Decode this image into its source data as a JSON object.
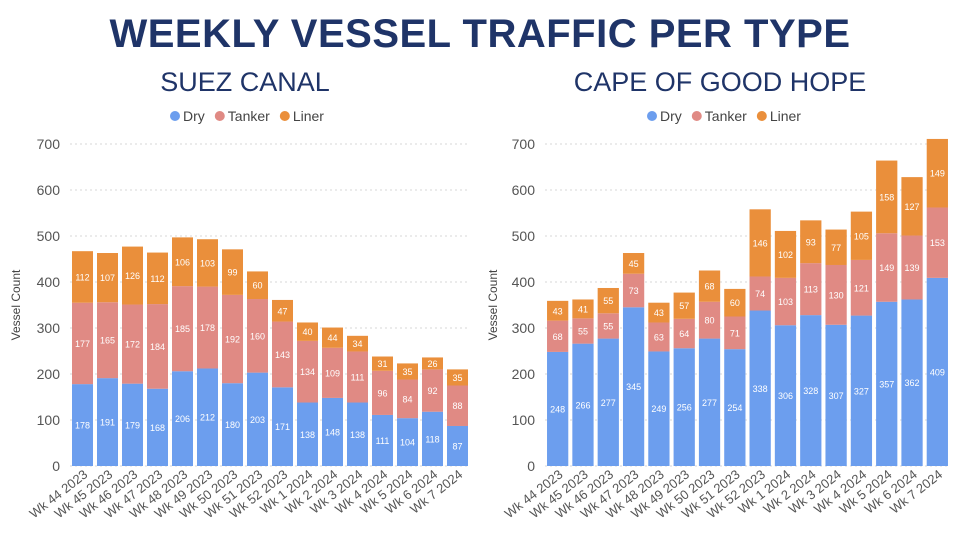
{
  "title": "WEEKLY VESSEL TRAFFIC PER TYPE",
  "colors": {
    "dry": "#6c9eee",
    "tanker": "#e08a84",
    "liner": "#ea8f3b",
    "title": "#1f3468",
    "grid": "#d7d7d7",
    "text": "#555555"
  },
  "chart_data": [
    {
      "type": "bar",
      "stacked": true,
      "title": "SUEZ CANAL",
      "xlabel": "",
      "ylabel": "Vessel Count",
      "ylim": [
        0,
        700
      ],
      "yticks": [
        0,
        100,
        200,
        300,
        400,
        500,
        600,
        700
      ],
      "grid": true,
      "legend": "top-left",
      "categories": [
        "Wk 44 2023",
        "Wk 45 2023",
        "Wk 46 2023",
        "Wk 47 2023",
        "Wk 48 2023",
        "Wk 49 2023",
        "Wk 50 2023",
        "Wk 51 2023",
        "Wk 52 2023",
        "Wk 1 2024",
        "Wk 2 2024",
        "Wk 3 2024",
        "Wk 4 2024",
        "Wk 5 2024",
        "Wk 6 2024",
        "Wk 7 2024"
      ],
      "series": [
        {
          "name": "Dry",
          "color": "#6c9eee",
          "values": [
            178,
            191,
            179,
            168,
            206,
            212,
            180,
            203,
            171,
            138,
            148,
            138,
            111,
            104,
            118,
            87
          ]
        },
        {
          "name": "Tanker",
          "color": "#e08a84",
          "values": [
            177,
            165,
            172,
            184,
            185,
            178,
            192,
            160,
            143,
            134,
            109,
            111,
            96,
            84,
            92,
            88
          ]
        },
        {
          "name": "Liner",
          "color": "#ea8f3b",
          "values": [
            112,
            107,
            126,
            112,
            106,
            103,
            99,
            60,
            47,
            40,
            44,
            34,
            31,
            35,
            26,
            35
          ]
        }
      ]
    },
    {
      "type": "bar",
      "stacked": true,
      "title": "CAPE OF GOOD HOPE",
      "xlabel": "",
      "ylabel": "Vessel Count",
      "ylim": [
        0,
        700
      ],
      "yticks": [
        0,
        100,
        200,
        300,
        400,
        500,
        600,
        700
      ],
      "grid": true,
      "legend": "top-left",
      "categories": [
        "Wk 44 2023",
        "Wk 45 2023",
        "Wk 46 2023",
        "Wk 47 2023",
        "Wk 48 2023",
        "Wk 49 2023",
        "Wk 50 2023",
        "Wk 51 2023",
        "Wk 52 2023",
        "Wk 1 2024",
        "Wk 2 2024",
        "Wk 3 2024",
        "Wk 4 2024",
        "Wk 5 2024",
        "Wk 6 2024",
        "Wk 7 2024"
      ],
      "series": [
        {
          "name": "Dry",
          "color": "#6c9eee",
          "values": [
            248,
            266,
            277,
            345,
            249,
            256,
            277,
            254,
            338,
            306,
            328,
            307,
            327,
            357,
            362,
            409
          ]
        },
        {
          "name": "Tanker",
          "color": "#e08a84",
          "values": [
            68,
            55,
            55,
            73,
            63,
            64,
            80,
            71,
            74,
            103,
            113,
            130,
            121,
            149,
            139,
            153
          ]
        },
        {
          "name": "Liner",
          "color": "#ea8f3b",
          "values": [
            43,
            41,
            55,
            45,
            43,
            57,
            68,
            60,
            146,
            102,
            93,
            77,
            105,
            158,
            127,
            149
          ]
        }
      ]
    }
  ]
}
